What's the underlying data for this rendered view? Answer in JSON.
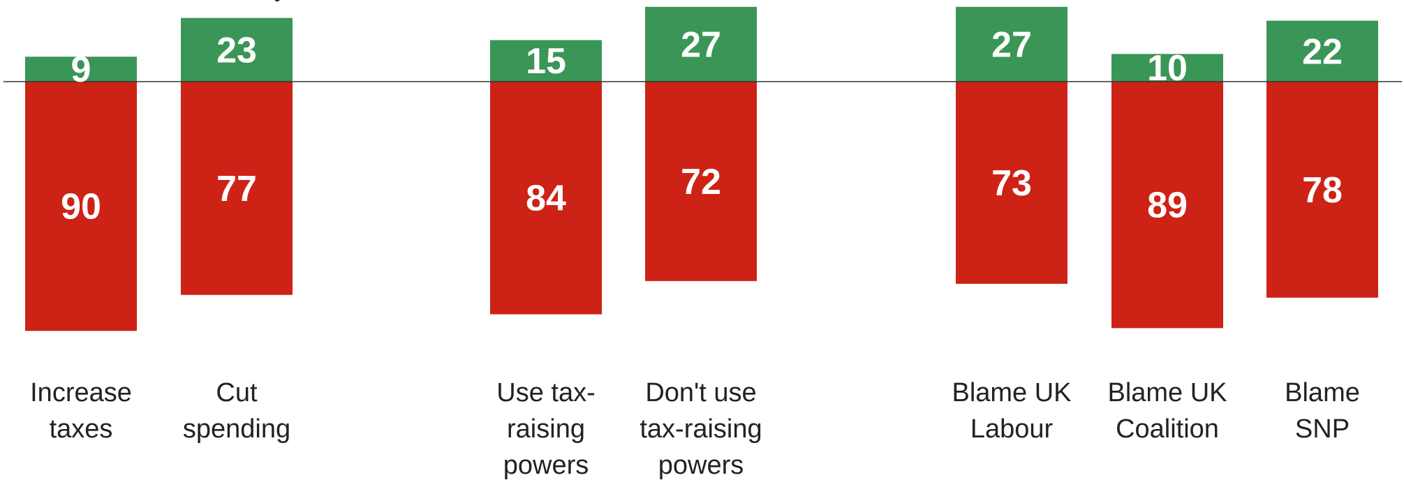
{
  "chart_data": {
    "type": "bar",
    "stacked": "diverging",
    "title": "",
    "xlabel": "",
    "ylabel": "",
    "grid": false,
    "legend": "none",
    "categories": [
      [
        "Increase",
        "taxes"
      ],
      [
        "Cut",
        "spending"
      ],
      [
        "Use tax-",
        "raising",
        "powers"
      ],
      [
        "Don't use",
        "tax-raising",
        "powers"
      ],
      [
        "Blame UK",
        "Labour"
      ],
      [
        "Blame UK",
        "Coalition"
      ],
      [
        "Blame",
        "SNP"
      ]
    ],
    "groups": [
      [
        0,
        1
      ],
      [
        2,
        3
      ],
      [
        4,
        5,
        6
      ]
    ],
    "series": [
      {
        "values": [
          9,
          23,
          15,
          27,
          27,
          10,
          22
        ],
        "color": "#3a9656"
      },
      {
        "values": [
          90,
          77,
          84,
          72,
          73,
          89,
          78
        ],
        "color": "#cd2216"
      }
    ],
    "partial_top_text": "y"
  }
}
